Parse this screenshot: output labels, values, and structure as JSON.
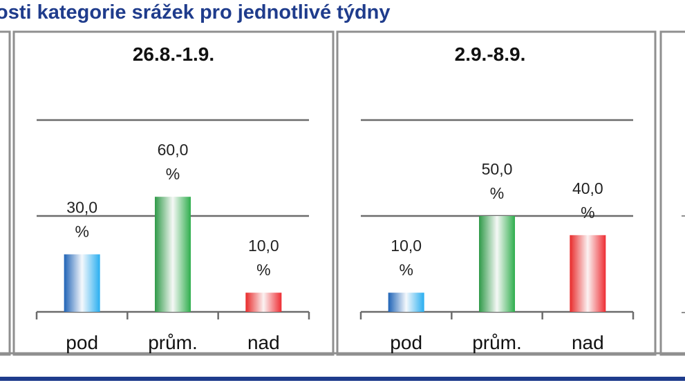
{
  "header": {
    "title": "osti kategorie srážek pro jednotlivé týdny"
  },
  "colors": {
    "title": "#1f3c8c",
    "pod": "#1a8fd9",
    "prum": "#27a846",
    "nad": "#e8252b"
  },
  "chart_data": [
    {
      "type": "bar",
      "title": "26.8.-1.9.",
      "categories": [
        "pod",
        "prům.",
        "nad"
      ],
      "values": [
        30.0,
        60.0,
        10.0
      ],
      "data_labels": [
        "30,0 %",
        "60,0 %",
        "10,0 %"
      ],
      "ylim": [
        0,
        100
      ],
      "grid": true
    },
    {
      "type": "bar",
      "title": "2.9.-8.9.",
      "categories": [
        "pod",
        "prům.",
        "nad"
      ],
      "values": [
        10.0,
        50.0,
        40.0
      ],
      "data_labels": [
        "10,0 %",
        "50,0 %",
        "40,0 %"
      ],
      "ylim": [
        0,
        100
      ],
      "grid": true
    }
  ]
}
